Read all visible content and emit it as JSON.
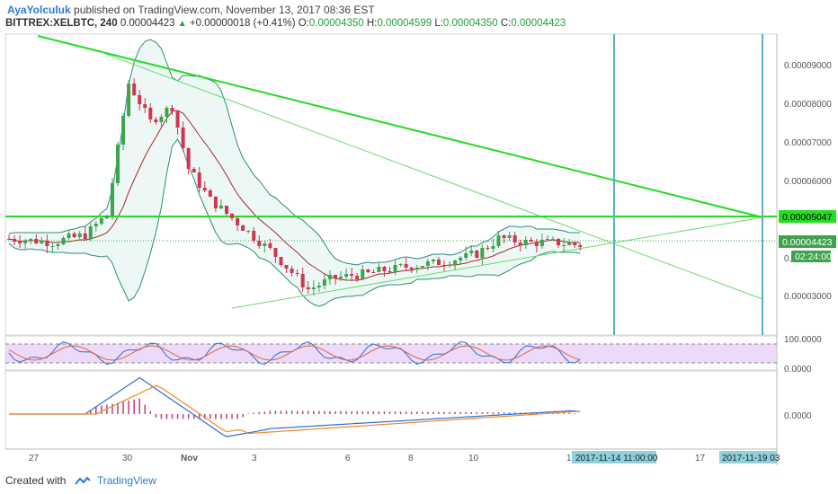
{
  "header": {
    "author": "AyaYolculuk",
    "published_text": "published on TradingView.com, November 13, 2017 08:36 EST",
    "symbol": "BITTREX:XELBTC, 240",
    "last": "0.00004423",
    "change": "+0.00000018 (+0.41%)",
    "o_label": "O:",
    "o_value": "0.00004350",
    "h_label": "H:",
    "h_value": "0.00004599",
    "l_label": "L:",
    "l_value": "0.00004350",
    "c_label": "C:",
    "c_value": "0.00004423"
  },
  "footer": {
    "created_with": "Created with",
    "brand": "TradingView"
  },
  "colors": {
    "up": "#3fa34d",
    "down": "#d0364f",
    "trend": "#22dd22",
    "band": "#2e8b7a",
    "vline": "#5aafc4",
    "rsi_fill": "#e5c9f5"
  },
  "chart_data": {
    "type": "candlestick",
    "price_axis": {
      "ticks": [
        "0.00009000",
        "0.00008000",
        "0.00007000",
        "0.00006000",
        "0.00003000"
      ],
      "range": [
        2.12e-05,
        9.85e-05
      ]
    },
    "price_labels": {
      "resistance": "0.00005047",
      "last": "0.00004423",
      "countdown": "02:24:00",
      "partial": "0."
    },
    "x_ticks": [
      "27",
      "30",
      "Nov",
      "3",
      "6",
      "8",
      "10",
      "1",
      "17"
    ],
    "x_markers": [
      "2017-11-14 11:00:00",
      "2017-11-19 03"
    ],
    "rsi_axis": [
      "100.0000",
      "0.0000"
    ],
    "macd_axis": [
      "0.0000"
    ],
    "candle_count": 106,
    "candles": [],
    "annotations": [
      "horizontal resistance at 0.00005047",
      "descending trendlines",
      "ascending support line",
      "Bollinger bands",
      "two vertical markers"
    ]
  }
}
